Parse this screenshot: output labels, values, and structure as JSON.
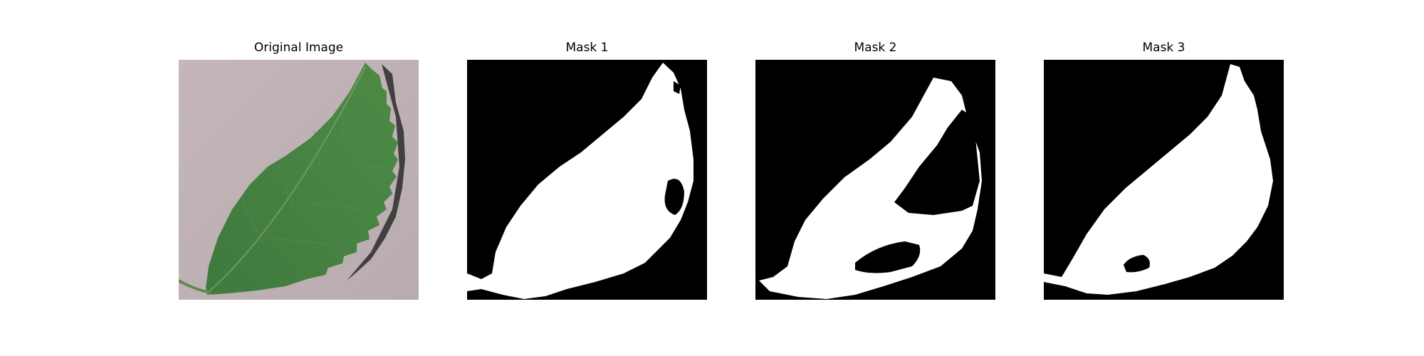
{
  "figure": {
    "panels": [
      {
        "id": "original",
        "title": "Original Image",
        "kind": "photo"
      },
      {
        "id": "mask1",
        "title": "Mask 1",
        "kind": "mask"
      },
      {
        "id": "mask2",
        "title": "Mask 2",
        "kind": "mask"
      },
      {
        "id": "mask3",
        "title": "Mask 3",
        "kind": "mask"
      }
    ]
  },
  "colors": {
    "background_photo": "#bdb1b3",
    "leaf": "#3f7a3e",
    "leaf_dark": "#2f5f2f",
    "mask_bg": "#000000",
    "mask_fg": "#ffffff",
    "shadow": "#2b2b2b"
  }
}
